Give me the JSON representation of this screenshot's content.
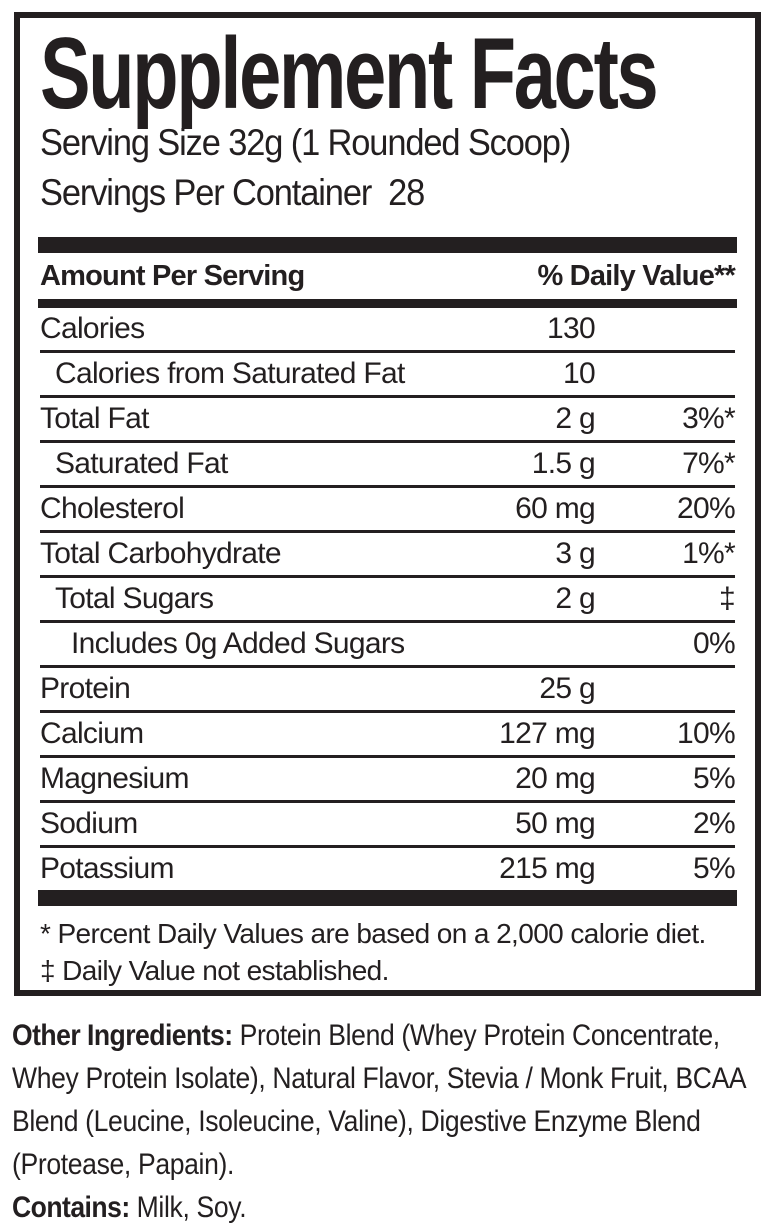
{
  "colors": {
    "ink": "#231f20",
    "background": "#ffffff"
  },
  "label": {
    "title": "Supplement Facts",
    "serving_size": "Serving Size 32g (1 Rounded Scoop)",
    "servings_per_container": "Servings Per Container  28",
    "header": {
      "amount_per_serving": "Amount Per Serving",
      "daily_value": "% Daily Value**"
    },
    "rows": [
      {
        "name": "Calories",
        "amount": "130",
        "dv": "",
        "indent": 0
      },
      {
        "name": "Calories from Saturated Fat",
        "amount": "10",
        "dv": "",
        "indent": 1
      },
      {
        "name": "Total Fat",
        "amount": "2 g",
        "dv": "3%*",
        "indent": 0
      },
      {
        "name": "Saturated Fat",
        "amount": "1.5 g",
        "dv": "7%*",
        "indent": 1
      },
      {
        "name": "Cholesterol",
        "amount": "60 mg",
        "dv": "20%",
        "indent": 0
      },
      {
        "name": "Total Carbohydrate",
        "amount": "3 g",
        "dv": "1%*",
        "indent": 0
      },
      {
        "name": "Total Sugars",
        "amount": "2 g",
        "dv": "‡",
        "indent": 1
      },
      {
        "name": "Includes 0g Added Sugars",
        "amount": "",
        "dv": "0%",
        "indent": 2
      },
      {
        "name": "Protein",
        "amount": "25 g",
        "dv": "",
        "indent": 0
      },
      {
        "name": "Calcium",
        "amount": "127 mg",
        "dv": "10%",
        "indent": 0
      },
      {
        "name": "Magnesium",
        "amount": "20 mg",
        "dv": "5%",
        "indent": 0
      },
      {
        "name": "Sodium",
        "amount": "50 mg",
        "dv": "2%",
        "indent": 0
      },
      {
        "name": "Potassium",
        "amount": "215 mg",
        "dv": "5%",
        "indent": 0
      }
    ],
    "footnotes": [
      "* Percent Daily Values are based on a 2,000 calorie diet.",
      "‡ Daily Value not established."
    ]
  },
  "other_ingredients": {
    "label": "Other Ingredients:",
    "text": " Protein Blend (Whey Protein Concentrate, Whey Protein Isolate), Natural Flavor, Stevia / Monk Fruit, BCAA Blend (Leucine, Isoleucine, Valine), Digestive Enzyme Blend (Protease, Papain)."
  },
  "contains": {
    "label": "Contains:",
    "text": " Milk, Soy."
  }
}
